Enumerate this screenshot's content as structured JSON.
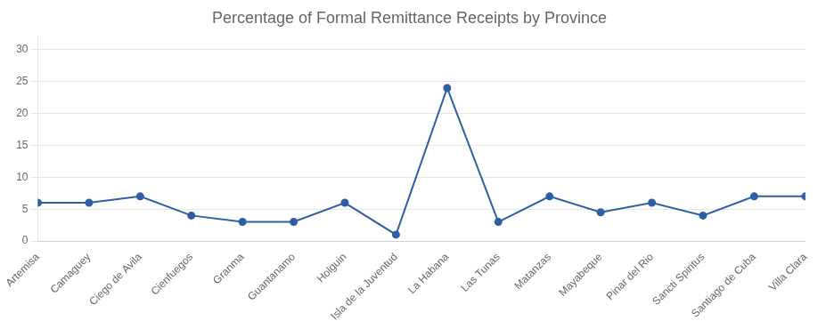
{
  "chart_data": {
    "type": "line",
    "title": "Percentage of Formal Remittance Receipts by Province",
    "categories": [
      "Artemisa",
      "Camaguey",
      "Ciego de Avila",
      "Cienfuegos",
      "Granma",
      "Guantanamo",
      "Holguin",
      "Isla de la Juventud",
      "La Habana",
      "Las Tunas",
      "Matanzas",
      "Mayabeque",
      "Pinar del Rio",
      "Sancti Spiritus",
      "Santiago de Cuba",
      "Villa Clara"
    ],
    "values": [
      6.0,
      6.0,
      7.0,
      4.0,
      3.0,
      3.0,
      6.0,
      1.0,
      24.0,
      3.0,
      7.0,
      4.5,
      6.0,
      4.0,
      7.0,
      7.0
    ],
    "color": "#2E5FA3",
    "marker": "circle",
    "ylim": [
      0,
      32
    ],
    "yticks": [
      0,
      5,
      10,
      15,
      20,
      25,
      30
    ],
    "grid": true
  }
}
